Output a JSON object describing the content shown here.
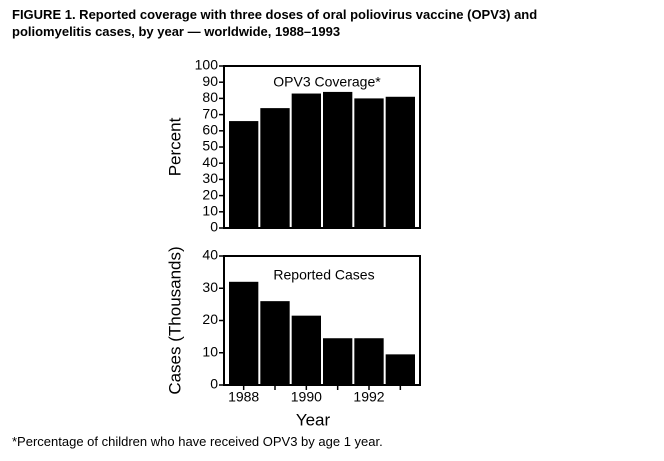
{
  "title": [
    "FIGURE 1. Reported coverage with three doses of oral poliovirus vaccine (OPV3) and",
    "poliomyelitis cases, by year — worldwide, 1988–1993"
  ],
  "footnote": "*Percentage of children who have received OPV3 by age 1 year.",
  "chart_data": [
    {
      "type": "bar",
      "annotation": "OPV3 Coverage*",
      "y_label": "Percent",
      "color": "#000000",
      "values": [
        66,
        74,
        83,
        84,
        80,
        81
      ],
      "ylim": [
        0,
        100
      ],
      "yticks": [
        0,
        10,
        20,
        30,
        40,
        50,
        60,
        70,
        80,
        90,
        100
      ]
    },
    {
      "type": "bar",
      "annotation": "Reported Cases",
      "y_label": "Cases (Thousands)",
      "x_label": "Year",
      "color": "#000000",
      "categories": [
        "1988",
        null,
        "1990",
        null,
        "1992",
        null
      ],
      "values": [
        32,
        26,
        21.5,
        14.5,
        14.5,
        9.5
      ],
      "ylim": [
        0,
        40
      ],
      "yticks": [
        0,
        10,
        20,
        30,
        40
      ]
    }
  ]
}
